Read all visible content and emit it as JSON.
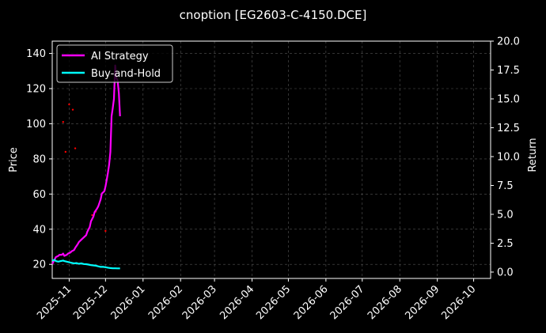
{
  "chart_data": {
    "type": "line",
    "title": "cnoption [EG2603-C-4150.DCE]",
    "ylabel_left": "Price",
    "ylabel_right": "Return",
    "xlim": [
      "2025-10-18",
      "2026-10-15"
    ],
    "ylim_left": [
      12,
      147
    ],
    "ylim_right": [
      -0.55,
      20
    ],
    "x_ticks": [
      "2025-11",
      "2025-12",
      "2026-01",
      "2026-02",
      "2026-03",
      "2026-04",
      "2026-05",
      "2026-06",
      "2026-07",
      "2026-08",
      "2026-09",
      "2026-10"
    ],
    "y_ticks_left": [
      "20",
      "40",
      "60",
      "80",
      "100",
      "120",
      "140"
    ],
    "y_ticks_right": [
      "0.0",
      "2.5",
      "5.0",
      "7.5",
      "10.0",
      "12.5",
      "15.0",
      "17.5",
      "20.0"
    ],
    "grid": true,
    "legend_position": "top-left",
    "colors": {
      "ai": "#ff00ff",
      "bh": "#00ffff",
      "markers": "#ff0000",
      "background": "#000000",
      "grid": "#555555"
    },
    "series": [
      {
        "name": "AI Strategy",
        "axis": "right",
        "color": "#ff00ff",
        "points": [
          [
            "2025-10-18",
            0.7
          ],
          [
            "2025-10-20",
            1.1
          ],
          [
            "2025-10-21",
            1.3
          ],
          [
            "2025-10-23",
            1.4
          ],
          [
            "2025-10-24",
            1.5
          ],
          [
            "2025-10-26",
            1.5
          ],
          [
            "2025-10-27",
            1.6
          ],
          [
            "2025-10-28",
            1.4
          ],
          [
            "2025-10-30",
            1.5
          ],
          [
            "2025-10-31",
            1.6
          ],
          [
            "2025-11-02",
            1.7
          ],
          [
            "2025-11-03",
            1.8
          ],
          [
            "2025-11-05",
            1.9
          ],
          [
            "2025-11-06",
            2.1
          ],
          [
            "2025-11-08",
            2.4
          ],
          [
            "2025-11-09",
            2.6
          ],
          [
            "2025-11-11",
            2.8
          ],
          [
            "2025-11-13",
            3.0
          ],
          [
            "2025-11-15",
            3.2
          ],
          [
            "2025-11-16",
            3.5
          ],
          [
            "2025-11-18",
            3.9
          ],
          [
            "2025-11-19",
            4.4
          ],
          [
            "2025-11-21",
            4.8
          ],
          [
            "2025-11-22",
            5.2
          ],
          [
            "2025-11-24",
            5.5
          ],
          [
            "2025-11-25",
            5.7
          ],
          [
            "2025-11-27",
            6.3
          ],
          [
            "2025-11-28",
            6.8
          ],
          [
            "2025-11-30",
            7.0
          ],
          [
            "2025-12-01",
            7.4
          ],
          [
            "2025-12-02",
            8.0
          ],
          [
            "2025-12-03",
            8.6
          ],
          [
            "2025-12-04",
            9.3
          ],
          [
            "2025-12-05",
            10.4
          ],
          [
            "2025-12-06",
            13.5
          ],
          [
            "2025-12-07",
            14.2
          ],
          [
            "2025-12-08",
            15.0
          ],
          [
            "2025-12-09",
            17.9
          ],
          [
            "2025-12-10",
            16.8
          ],
          [
            "2025-12-11",
            16.6
          ],
          [
            "2025-12-12",
            15.5
          ],
          [
            "2025-12-13",
            13.5
          ]
        ]
      },
      {
        "name": "Buy-and-Hold",
        "axis": "right",
        "color": "#00ffff",
        "points": [
          [
            "2025-10-18",
            1.0
          ],
          [
            "2025-10-20",
            1.05
          ],
          [
            "2025-10-21",
            0.95
          ],
          [
            "2025-10-23",
            0.9
          ],
          [
            "2025-10-25",
            0.95
          ],
          [
            "2025-10-27",
            1.0
          ],
          [
            "2025-10-28",
            0.95
          ],
          [
            "2025-10-30",
            0.9
          ],
          [
            "2025-11-01",
            0.85
          ],
          [
            "2025-11-03",
            0.8
          ],
          [
            "2025-11-05",
            0.75
          ],
          [
            "2025-11-07",
            0.78
          ],
          [
            "2025-11-09",
            0.72
          ],
          [
            "2025-11-11",
            0.75
          ],
          [
            "2025-11-13",
            0.7
          ],
          [
            "2025-11-15",
            0.68
          ],
          [
            "2025-11-17",
            0.65
          ],
          [
            "2025-11-19",
            0.6
          ],
          [
            "2025-11-21",
            0.58
          ],
          [
            "2025-11-23",
            0.55
          ],
          [
            "2025-11-25",
            0.5
          ],
          [
            "2025-11-27",
            0.45
          ],
          [
            "2025-11-29",
            0.45
          ],
          [
            "2025-12-01",
            0.42
          ],
          [
            "2025-12-03",
            0.38
          ],
          [
            "2025-12-05",
            0.35
          ],
          [
            "2025-12-07",
            0.33
          ],
          [
            "2025-12-09",
            0.33
          ],
          [
            "2025-12-11",
            0.32
          ],
          [
            "2025-12-13",
            0.32
          ]
        ]
      }
    ],
    "markers": {
      "axis": "left",
      "color": "#ff0000",
      "points": [
        [
          "2025-10-27",
          101
        ],
        [
          "2025-10-29",
          84
        ],
        [
          "2025-11-01",
          111
        ],
        [
          "2025-11-04",
          108
        ],
        [
          "2025-11-06",
          86
        ],
        [
          "2025-11-20",
          48
        ],
        [
          "2025-11-23",
          50
        ],
        [
          "2025-12-01",
          39
        ]
      ]
    }
  }
}
